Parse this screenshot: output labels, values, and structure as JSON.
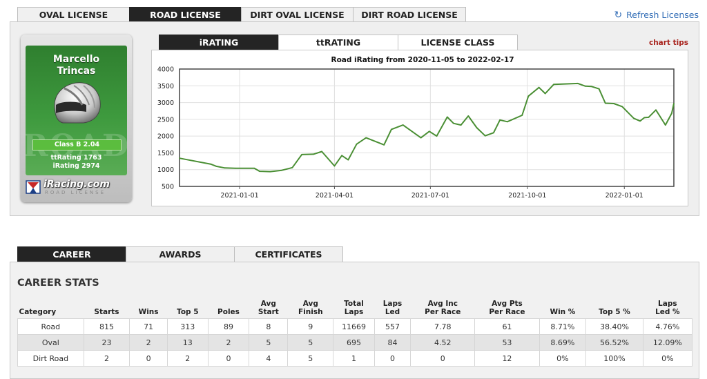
{
  "license_tabs": [
    "OVAL LICENSE",
    "ROAD LICENSE",
    "DIRT OVAL LICENSE",
    "DIRT ROAD LICENSE"
  ],
  "active_license_tab": 1,
  "refresh_label": "Refresh Licenses",
  "card": {
    "first_name": "Marcello",
    "last_name": "Trincas",
    "bg_text": "ROAD",
    "class": "Class B 2.04",
    "ttrating": "ttRating 1763",
    "irating": "iRating 2974",
    "logo": "iRacing.com",
    "logo_sub": "ROAD LICENSE"
  },
  "rating_tabs": [
    "iRATING",
    "ttRATING",
    "LICENSE CLASS"
  ],
  "active_rating_tab": 0,
  "chart_tips": "chart tips",
  "chart_data": {
    "type": "line",
    "title": "Road iRating from 2020-11-05 to 2022-02-17",
    "xlabel": "",
    "ylabel": "",
    "ylim": [
      500,
      4000
    ],
    "yticks": [
      "4000",
      "3500",
      "3000",
      "2500",
      "2000",
      "1500",
      "1000",
      "500"
    ],
    "xticks": [
      "2021-01-01",
      "2021-04-01",
      "2021-07-01",
      "2021-10-01",
      "2022-01-01"
    ],
    "xlim": [
      "2020-11-05",
      "2022-02-17"
    ],
    "grid": true,
    "series": [
      {
        "color": "#4a8f34",
        "points": [
          [
            "2020-11-05",
            1340
          ],
          [
            "2020-12-05",
            1160
          ],
          [
            "2020-12-10",
            1100
          ],
          [
            "2020-12-18",
            1050
          ],
          [
            "2020-12-28",
            1040
          ],
          [
            "2021-01-15",
            1040
          ],
          [
            "2021-01-20",
            950
          ],
          [
            "2021-01-30",
            940
          ],
          [
            "2021-02-10",
            980
          ],
          [
            "2021-02-20",
            1060
          ],
          [
            "2021-03-01",
            1450
          ],
          [
            "2021-03-12",
            1460
          ],
          [
            "2021-03-20",
            1540
          ],
          [
            "2021-04-01",
            1110
          ],
          [
            "2021-04-08",
            1420
          ],
          [
            "2021-04-14",
            1290
          ],
          [
            "2021-04-22",
            1760
          ],
          [
            "2021-05-01",
            1950
          ],
          [
            "2021-05-18",
            1740
          ],
          [
            "2021-05-25",
            2200
          ],
          [
            "2021-06-05",
            2330
          ],
          [
            "2021-06-22",
            1950
          ],
          [
            "2021-06-30",
            2140
          ],
          [
            "2021-07-07",
            2000
          ],
          [
            "2021-07-17",
            2570
          ],
          [
            "2021-07-23",
            2380
          ],
          [
            "2021-07-30",
            2330
          ],
          [
            "2021-08-06",
            2600
          ],
          [
            "2021-08-14",
            2250
          ],
          [
            "2021-08-22",
            2010
          ],
          [
            "2021-08-30",
            2100
          ],
          [
            "2021-09-05",
            2480
          ],
          [
            "2021-09-12",
            2430
          ],
          [
            "2021-09-26",
            2620
          ],
          [
            "2021-10-02",
            3190
          ],
          [
            "2021-10-12",
            3450
          ],
          [
            "2021-10-18",
            3270
          ],
          [
            "2021-10-26",
            3540
          ],
          [
            "2021-11-18",
            3570
          ],
          [
            "2021-11-25",
            3490
          ],
          [
            "2021-12-01",
            3480
          ],
          [
            "2021-12-08",
            3410
          ],
          [
            "2021-12-14",
            2980
          ],
          [
            "2021-12-22",
            2970
          ],
          [
            "2021-12-30",
            2880
          ],
          [
            "2022-01-04",
            2720
          ],
          [
            "2022-01-10",
            2530
          ],
          [
            "2022-01-16",
            2450
          ],
          [
            "2022-01-20",
            2550
          ],
          [
            "2022-01-24",
            2560
          ],
          [
            "2022-01-31",
            2780
          ],
          [
            "2022-02-03",
            2630
          ],
          [
            "2022-02-09",
            2330
          ],
          [
            "2022-02-15",
            2680
          ],
          [
            "2022-02-17",
            2974
          ]
        ]
      }
    ]
  },
  "career_tabs": [
    "CAREER",
    "AWARDS",
    "CERTIFICATES"
  ],
  "active_career_tab": 0,
  "career_title": "CAREER STATS",
  "columns": [
    [
      "Category"
    ],
    [
      "Starts"
    ],
    [
      "Wins"
    ],
    [
      "Top 5"
    ],
    [
      "Poles"
    ],
    [
      "Avg",
      "Start"
    ],
    [
      "Avg",
      "Finish"
    ],
    [
      "Total",
      "Laps"
    ],
    [
      "Laps",
      "Led"
    ],
    [
      "Avg Inc",
      "Per Race"
    ],
    [
      "Avg Pts",
      "Per Race"
    ],
    [
      "Win %"
    ],
    [
      "Top 5 %"
    ],
    [
      "Laps",
      "Led %"
    ]
  ],
  "rows": [
    [
      "Road",
      "815",
      "71",
      "313",
      "89",
      "8",
      "9",
      "11669",
      "557",
      "7.78",
      "61",
      "8.71%",
      "38.40%",
      "4.76%"
    ],
    [
      "Oval",
      "23",
      "2",
      "13",
      "2",
      "5",
      "5",
      "695",
      "84",
      "4.52",
      "53",
      "8.69%",
      "56.52%",
      "12.09%"
    ],
    [
      "Dirt Road",
      "2",
      "0",
      "2",
      "0",
      "4",
      "5",
      "1",
      "0",
      "0",
      "12",
      "0%",
      "100%",
      "0%"
    ]
  ]
}
